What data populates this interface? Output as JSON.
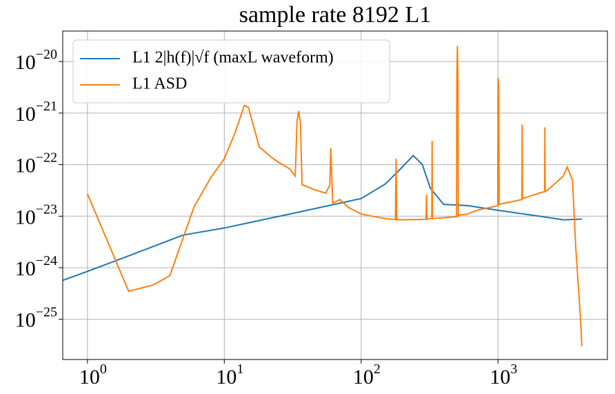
{
  "chart_data": {
    "type": "line",
    "title": "sample rate 8192 L1",
    "xscale": "log",
    "yscale": "log",
    "grid": true,
    "legend": "upper left",
    "xlim": [
      0.66,
      6300
    ],
    "ylim": [
      1.66e-26,
      3.9e-20
    ],
    "xticks": [
      {
        "value": 1,
        "label": "10",
        "exponent": "0"
      },
      {
        "value": 10,
        "label": "10",
        "exponent": "1"
      },
      {
        "value": 100,
        "label": "10",
        "exponent": "2"
      },
      {
        "value": 1000,
        "label": "10",
        "exponent": "3"
      }
    ],
    "yticks": [
      {
        "value": 1e-25,
        "label": "10",
        "exponent": "−25"
      },
      {
        "value": 1e-24,
        "label": "10",
        "exponent": "−24"
      },
      {
        "value": 1e-23,
        "label": "10",
        "exponent": "−23"
      },
      {
        "value": 1e-22,
        "label": "10",
        "exponent": "−22"
      },
      {
        "value": 1e-21,
        "label": "10",
        "exponent": "−21"
      },
      {
        "value": 1e-20,
        "label": "10",
        "exponent": "−20"
      }
    ],
    "series": [
      {
        "name": "L1 2|h(f)|√f (maxL waveform)",
        "color": "#1f77b4",
        "x": [
          0.66,
          1,
          2,
          5,
          10,
          30,
          100,
          150,
          200,
          240,
          280,
          320,
          400,
          600,
          1000,
          2000,
          3000,
          4096
        ],
        "values": [
          5.7e-25,
          8.5e-25,
          1.7e-24,
          4.3e-24,
          5.9e-24,
          1.1e-23,
          2.2e-23,
          4.2e-23,
          9e-23,
          1.5e-22,
          1e-22,
          3.5e-23,
          1.7e-23,
          1.6e-23,
          1.3e-23,
          1e-23,
          8.5e-24,
          8.8e-24
        ]
      },
      {
        "name": "L1 ASD",
        "color": "#ff7f0e",
        "x": [
          1,
          2,
          3,
          4,
          6,
          8,
          10,
          12,
          14,
          15,
          18,
          22,
          25,
          30,
          33,
          34,
          35,
          36,
          37,
          45,
          55,
          59,
          60,
          62,
          70,
          80,
          100,
          120,
          150,
          178,
          180,
          182,
          250,
          298,
          300,
          302,
          328,
          330,
          332,
          400,
          498,
          500,
          505,
          510,
          512,
          520,
          600,
          700,
          995,
          1000,
          1010,
          1020,
          1495,
          1500,
          1510,
          2000,
          2190,
          2200,
          2210,
          2300,
          3000,
          3200,
          3500,
          3700,
          4000,
          4096
        ],
        "values": [
          2.7e-23,
          3.5e-25,
          4.6e-25,
          7e-25,
          1.5e-23,
          5.7e-23,
          1.3e-22,
          4.2e-22,
          1.4e-21,
          1.3e-21,
          2.2e-22,
          1.4e-22,
          1.1e-22,
          8.3e-23,
          6e-23,
          7e-22,
          1.1e-21,
          6.5e-22,
          4.1e-23,
          3.3e-23,
          2.8e-23,
          4e-23,
          2.1e-22,
          1.8e-23,
          2.1e-23,
          1.5e-23,
          1.1e-23,
          1e-23,
          9e-24,
          8.6e-24,
          1.3e-22,
          8.5e-24,
          8.6e-24,
          8.7e-24,
          2.6e-23,
          8.8e-24,
          9e-24,
          2.9e-22,
          9e-24,
          9.3e-24,
          9.8e-24,
          4.5e-21,
          2e-20,
          4e-21,
          1e-23,
          1.05e-23,
          1.1e-23,
          1.3e-23,
          1.6e-23,
          4.8e-21,
          3.5e-21,
          1.7e-23,
          2.1e-23,
          6e-22,
          2.2e-23,
          2.8e-23,
          3e-23,
          5.3e-22,
          3e-23,
          3.2e-23,
          6e-23,
          9e-23,
          5e-23,
          2.4e-24,
          1.1e-25,
          3e-26
        ]
      }
    ]
  }
}
